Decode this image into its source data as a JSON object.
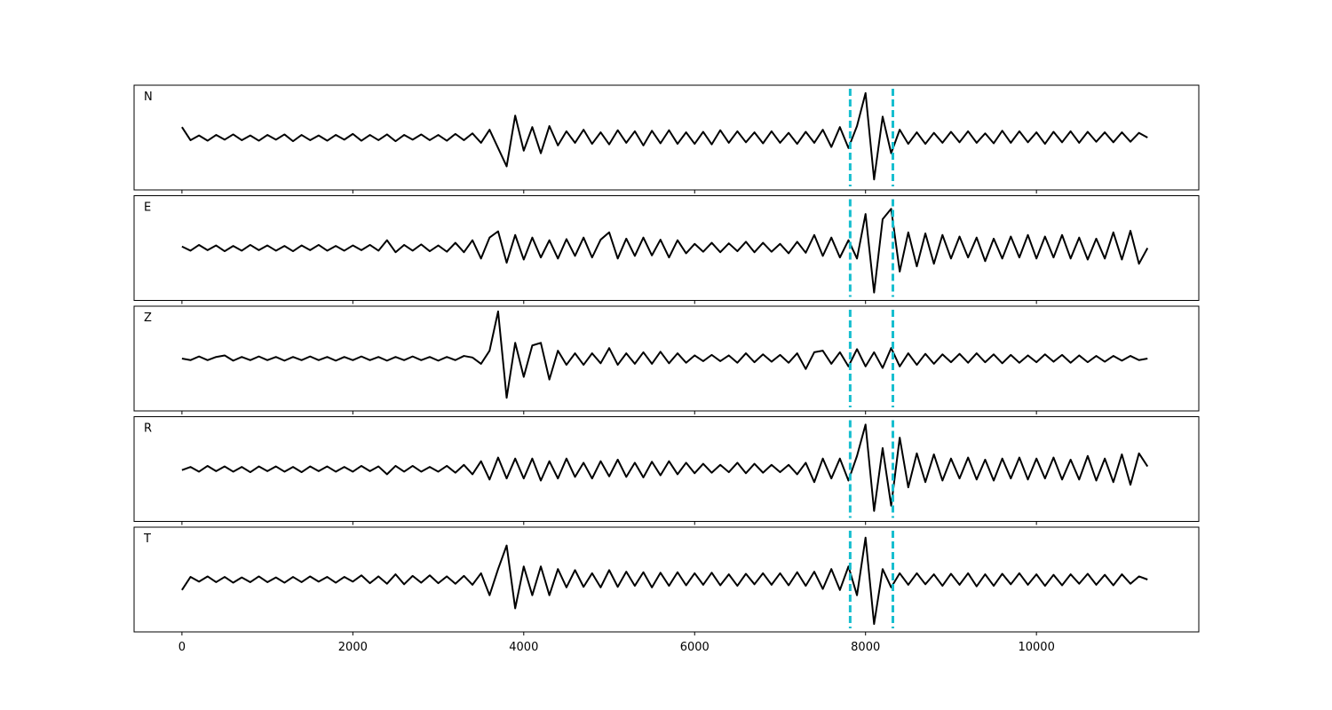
{
  "chart_data": {
    "type": "line",
    "xlim": [
      -560,
      11900
    ],
    "xticks": [
      0,
      2000,
      4000,
      6000,
      8000,
      10000
    ],
    "ylim": [
      -1,
      1
    ],
    "vlines": [
      7820,
      8320
    ],
    "vline_color": "#17becf",
    "x": [
      0,
      100,
      200,
      300,
      400,
      500,
      600,
      700,
      800,
      900,
      1000,
      1100,
      1200,
      1300,
      1400,
      1500,
      1600,
      1700,
      1800,
      1900,
      2000,
      2100,
      2200,
      2300,
      2400,
      2500,
      2600,
      2700,
      2800,
      2900,
      3000,
      3100,
      3200,
      3300,
      3400,
      3500,
      3600,
      3700,
      3800,
      3900,
      4000,
      4100,
      4200,
      4300,
      4400,
      4500,
      4600,
      4700,
      4800,
      4900,
      5000,
      5100,
      5200,
      5300,
      5400,
      5500,
      5600,
      5700,
      5800,
      5900,
      6000,
      6100,
      6200,
      6300,
      6400,
      6500,
      6600,
      6700,
      6800,
      6900,
      7000,
      7100,
      7200,
      7300,
      7400,
      7500,
      7600,
      7700,
      7800,
      7900,
      8000,
      8100,
      8200,
      8300,
      8400,
      8500,
      8600,
      8700,
      8800,
      8900,
      9000,
      9100,
      9200,
      9300,
      9400,
      9500,
      9600,
      9700,
      9800,
      9900,
      10000,
      10100,
      10200,
      10300,
      10400,
      10500,
      10600,
      10700,
      10800,
      10900,
      11000,
      11100,
      11200,
      11300
    ],
    "series": [
      {
        "name": "N",
        "color": "#000000",
        "values": [
          0.2,
          -0.05,
          0.04,
          -0.06,
          0.05,
          -0.04,
          0.06,
          -0.05,
          0.04,
          -0.06,
          0.05,
          -0.04,
          0.06,
          -0.07,
          0.05,
          -0.05,
          0.04,
          -0.06,
          0.05,
          -0.04,
          0.07,
          -0.06,
          0.05,
          -0.05,
          0.06,
          -0.07,
          0.05,
          -0.04,
          0.06,
          -0.05,
          0.05,
          -0.06,
          0.07,
          -0.05,
          0.08,
          -0.1,
          0.15,
          -0.2,
          -0.55,
          0.42,
          -0.25,
          0.2,
          -0.3,
          0.22,
          -0.15,
          0.12,
          -0.1,
          0.15,
          -0.12,
          0.1,
          -0.13,
          0.14,
          -0.1,
          0.12,
          -0.15,
          0.13,
          -0.11,
          0.14,
          -0.12,
          0.1,
          -0.12,
          0.11,
          -0.13,
          0.14,
          -0.1,
          0.12,
          -0.09,
          0.1,
          -0.11,
          0.12,
          -0.1,
          0.09,
          -0.12,
          0.11,
          -0.1,
          0.15,
          -0.18,
          0.2,
          -0.2,
          0.22,
          0.85,
          -0.8,
          0.4,
          -0.3,
          0.15,
          -0.12,
          0.1,
          -0.12,
          0.09,
          -0.1,
          0.11,
          -0.09,
          0.12,
          -0.1,
          0.08,
          -0.11,
          0.13,
          -0.1,
          0.12,
          -0.09,
          0.1,
          -0.12,
          0.11,
          -0.09,
          0.12,
          -0.1,
          0.11,
          -0.08,
          0.1,
          -0.09,
          0.1,
          -0.08,
          0.09,
          0.0
        ]
      },
      {
        "name": "E",
        "color": "#000000",
        "values": [
          0.03,
          -0.05,
          0.06,
          -0.04,
          0.05,
          -0.06,
          0.04,
          -0.05,
          0.06,
          -0.04,
          0.05,
          -0.05,
          0.04,
          -0.06,
          0.05,
          -0.04,
          0.06,
          -0.05,
          0.04,
          -0.05,
          0.05,
          -0.04,
          0.06,
          -0.05,
          0.15,
          -0.08,
          0.06,
          -0.05,
          0.07,
          -0.06,
          0.05,
          -0.07,
          0.1,
          -0.08,
          0.15,
          -0.2,
          0.2,
          0.32,
          -0.28,
          0.25,
          -0.22,
          0.2,
          -0.18,
          0.15,
          -0.2,
          0.17,
          -0.15,
          0.2,
          -0.18,
          0.16,
          0.3,
          -0.2,
          0.18,
          -0.15,
          0.2,
          -0.14,
          0.16,
          -0.18,
          0.15,
          -0.1,
          0.08,
          -0.07,
          0.1,
          -0.08,
          0.09,
          -0.06,
          0.12,
          -0.08,
          0.1,
          -0.07,
          0.08,
          -0.1,
          0.12,
          -0.09,
          0.25,
          -0.15,
          0.2,
          -0.18,
          0.15,
          -0.2,
          0.65,
          -0.85,
          0.55,
          0.75,
          -0.45,
          0.3,
          -0.35,
          0.28,
          -0.3,
          0.25,
          -0.2,
          0.22,
          -0.18,
          0.2,
          -0.25,
          0.18,
          -0.2,
          0.22,
          -0.18,
          0.25,
          -0.2,
          0.22,
          -0.18,
          0.25,
          -0.2,
          0.2,
          -0.22,
          0.18,
          -0.2,
          0.3,
          -0.22,
          0.33,
          -0.3,
          0.0
        ]
      },
      {
        "name": "Z",
        "color": "#000000",
        "values": [
          0.0,
          -0.03,
          0.04,
          -0.03,
          0.03,
          0.06,
          -0.04,
          0.03,
          -0.03,
          0.04,
          -0.03,
          0.03,
          -0.04,
          0.03,
          -0.03,
          0.04,
          -0.03,
          0.03,
          -0.04,
          0.03,
          -0.03,
          0.04,
          -0.03,
          0.03,
          -0.04,
          0.03,
          -0.03,
          0.04,
          -0.03,
          0.03,
          -0.04,
          0.03,
          -0.03,
          0.05,
          0.02,
          -0.1,
          0.15,
          0.9,
          -0.75,
          0.3,
          -0.35,
          0.25,
          0.3,
          -0.4,
          0.15,
          -0.12,
          0.1,
          -0.12,
          0.1,
          -0.09,
          0.2,
          -0.12,
          0.1,
          -0.1,
          0.12,
          -0.1,
          0.13,
          -0.09,
          0.1,
          -0.08,
          0.06,
          -0.05,
          0.07,
          -0.05,
          0.06,
          -0.08,
          0.1,
          -0.07,
          0.08,
          -0.06,
          0.07,
          -0.08,
          0.1,
          -0.2,
          0.12,
          0.15,
          -0.1,
          0.12,
          -0.15,
          0.18,
          -0.15,
          0.12,
          -0.18,
          0.2,
          -0.15,
          0.1,
          -0.12,
          0.09,
          -0.1,
          0.08,
          -0.07,
          0.09,
          -0.08,
          0.1,
          -0.07,
          0.08,
          -0.09,
          0.07,
          -0.08,
          0.06,
          -0.07,
          0.08,
          -0.06,
          0.07,
          -0.08,
          0.06,
          -0.07,
          0.05,
          -0.06,
          0.05,
          -0.04,
          0.05,
          -0.03,
          0.0
        ]
      },
      {
        "name": "R",
        "color": "#000000",
        "values": [
          -0.02,
          0.04,
          -0.05,
          0.06,
          -0.04,
          0.05,
          -0.05,
          0.04,
          -0.06,
          0.05,
          -0.04,
          0.05,
          -0.05,
          0.04,
          -0.06,
          0.05,
          -0.04,
          0.05,
          -0.05,
          0.04,
          -0.05,
          0.06,
          -0.04,
          0.05,
          -0.1,
          0.06,
          -0.05,
          0.06,
          -0.05,
          0.04,
          -0.05,
          0.06,
          -0.07,
          0.08,
          -0.1,
          0.15,
          -0.2,
          0.22,
          -0.18,
          0.2,
          -0.18,
          0.2,
          -0.22,
          0.15,
          -0.18,
          0.2,
          -0.15,
          0.12,
          -0.18,
          0.15,
          -0.14,
          0.18,
          -0.15,
          0.12,
          -0.16,
          0.14,
          -0.12,
          0.15,
          -0.1,
          0.12,
          -0.08,
          0.1,
          -0.07,
          0.08,
          -0.06,
          0.12,
          -0.08,
          0.1,
          -0.07,
          0.08,
          -0.06,
          0.08,
          -0.1,
          0.12,
          -0.25,
          0.2,
          -0.18,
          0.2,
          -0.22,
          0.25,
          0.85,
          -0.8,
          0.4,
          -0.7,
          0.6,
          -0.35,
          0.3,
          -0.25,
          0.28,
          -0.22,
          0.2,
          -0.18,
          0.22,
          -0.2,
          0.18,
          -0.22,
          0.2,
          -0.18,
          0.22,
          -0.2,
          0.2,
          -0.18,
          0.22,
          -0.2,
          0.18,
          -0.2,
          0.25,
          -0.22,
          0.2,
          -0.25,
          0.28,
          -0.3,
          0.3,
          0.05
        ]
      },
      {
        "name": "T",
        "color": "#000000",
        "values": [
          -0.2,
          0.05,
          -0.04,
          0.06,
          -0.05,
          0.05,
          -0.06,
          0.04,
          -0.05,
          0.06,
          -0.05,
          0.04,
          -0.06,
          0.05,
          -0.05,
          0.06,
          -0.04,
          0.05,
          -0.06,
          0.05,
          -0.04,
          0.08,
          -0.07,
          0.06,
          -0.08,
          0.1,
          -0.09,
          0.07,
          -0.06,
          0.08,
          -0.07,
          0.06,
          -0.08,
          0.07,
          -0.1,
          0.12,
          -0.3,
          0.2,
          0.65,
          -0.55,
          0.25,
          -0.3,
          0.25,
          -0.3,
          0.2,
          -0.15,
          0.18,
          -0.14,
          0.12,
          -0.15,
          0.18,
          -0.14,
          0.15,
          -0.12,
          0.14,
          -0.15,
          0.13,
          -0.12,
          0.14,
          -0.11,
          0.12,
          -0.1,
          0.13,
          -0.11,
          0.1,
          -0.12,
          0.11,
          -0.09,
          0.12,
          -0.1,
          0.12,
          -0.11,
          0.14,
          -0.12,
          0.15,
          -0.18,
          0.2,
          -0.2,
          0.25,
          -0.3,
          0.8,
          -0.85,
          0.2,
          -0.15,
          0.12,
          -0.1,
          0.12,
          -0.09,
          0.1,
          -0.12,
          0.11,
          -0.1,
          0.12,
          -0.13,
          0.1,
          -0.12,
          0.11,
          -0.09,
          0.12,
          -0.1,
          0.1,
          -0.12,
          0.09,
          -0.11,
          0.1,
          -0.08,
          0.11,
          -0.1,
          0.09,
          -0.11,
          0.1,
          -0.08,
          0.06,
          0.0
        ]
      }
    ]
  }
}
